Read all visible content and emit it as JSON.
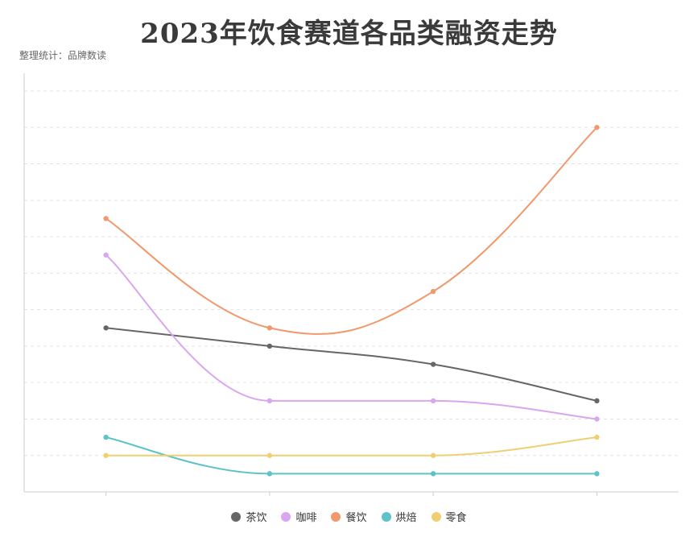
{
  "chart_data": {
    "type": "line",
    "title": "2023年饮食赛道各品类融资走势",
    "subtitle": "整理统计：品牌数读",
    "categories": [
      "",
      "",
      "",
      ""
    ],
    "ylim": [
      0,
      22
    ],
    "grid": true,
    "smooth": true,
    "legend_position": "bottom",
    "series": [
      {
        "name": "茶饮",
        "color": "#666666",
        "values": [
          9,
          8,
          7,
          5
        ]
      },
      {
        "name": "咖啡",
        "color": "#d9a6ef",
        "values": [
          13,
          5,
          5,
          4
        ]
      },
      {
        "name": "餐饮",
        "color": "#f1986c",
        "values": [
          15,
          9,
          11,
          20
        ]
      },
      {
        "name": "烘焙",
        "color": "#5cc3c8",
        "values": [
          3,
          1,
          1,
          1
        ]
      },
      {
        "name": "零食",
        "color": "#f0cf72",
        "values": [
          2,
          2,
          2,
          3
        ]
      }
    ]
  }
}
